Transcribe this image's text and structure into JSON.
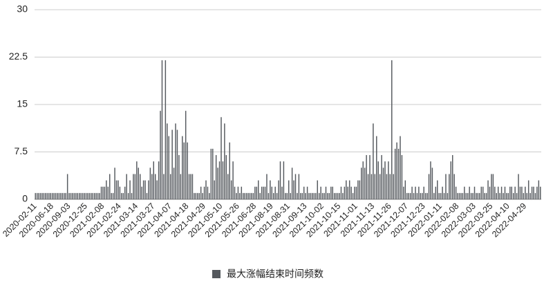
{
  "chart_data": {
    "type": "bar",
    "categories": [
      "2020-02-11",
      null,
      null,
      null,
      null,
      null,
      null,
      null,
      null,
      null,
      "2020-06-18",
      null,
      null,
      null,
      null,
      null,
      null,
      null,
      null,
      null,
      "2020-09-03",
      null,
      null,
      null,
      null,
      null,
      null,
      null,
      null,
      null,
      "2020-12-25",
      null,
      null,
      null,
      null,
      null,
      null,
      null,
      null,
      null,
      "2021-02-08",
      null,
      null,
      null,
      null,
      null,
      null,
      null,
      null,
      null,
      "2021-02-24",
      null,
      null,
      null,
      null,
      null,
      null,
      null,
      null,
      null,
      "2021-03-14",
      null,
      null,
      null,
      null,
      null,
      null,
      null,
      null,
      null,
      "2021-03-27",
      null,
      null,
      null,
      null,
      null,
      null,
      null,
      null,
      null,
      "2021-04-07",
      null,
      null,
      null,
      null,
      null,
      null,
      null,
      null,
      null,
      "2021-04-18",
      null,
      null,
      null,
      null,
      null,
      null,
      null,
      null,
      null,
      "2021-04-29",
      null,
      null,
      null,
      null,
      null,
      null,
      null,
      null,
      null,
      "2021-05-10",
      null,
      null,
      null,
      null,
      null,
      null,
      null,
      null,
      null,
      "2021-05-26",
      null,
      null,
      null,
      null,
      null,
      null,
      null,
      null,
      null,
      "2021-06-28",
      null,
      null,
      null,
      null,
      null,
      null,
      null,
      null,
      null,
      "2021-08-19",
      null,
      null,
      null,
      null,
      null,
      null,
      null,
      null,
      null,
      "2021-08-31",
      null,
      null,
      null,
      null,
      null,
      null,
      null,
      null,
      null,
      "2021-09-13",
      null,
      null,
      null,
      null,
      null,
      null,
      null,
      null,
      null,
      "2021-10-02",
      null,
      null,
      null,
      null,
      null,
      null,
      null,
      null,
      null,
      "2021-10-15",
      null,
      null,
      null,
      null,
      null,
      null,
      null,
      null,
      null,
      "2021-11-01",
      null,
      null,
      null,
      null,
      null,
      null,
      null,
      null,
      null,
      "2021-11-13",
      null,
      null,
      null,
      null,
      null,
      null,
      null,
      null,
      null,
      "2021-11-26",
      null,
      null,
      null,
      null,
      null,
      null,
      null,
      null,
      null,
      "2021-12-07",
      null,
      null,
      null,
      null,
      null,
      null,
      null,
      null,
      null,
      "2021-12-23",
      null,
      null,
      null,
      null,
      null,
      null,
      null,
      null,
      null,
      "2022-01-11",
      null,
      null,
      null,
      null,
      null,
      null,
      null,
      null,
      null,
      "2022-02-08",
      null,
      null,
      null,
      null,
      null,
      null,
      null,
      null,
      null,
      "2022-03-03",
      null,
      null,
      null,
      null,
      null,
      null,
      null,
      null,
      null,
      "2022-03-25",
      null,
      null,
      null,
      null,
      null,
      null,
      null,
      null,
      null,
      "2022-04-10",
      null,
      null,
      null,
      null,
      null,
      null,
      null,
      null,
      null,
      "2022-04-29",
      null,
      null,
      null,
      null,
      null,
      null,
      null,
      null,
      null
    ],
    "series": [
      {
        "name": "最大涨幅结束时间频数",
        "color": "#55595e",
        "values": [
          1,
          1,
          1,
          1,
          1,
          1,
          1,
          1,
          1,
          1,
          1,
          1,
          1,
          1,
          1,
          1,
          1,
          1,
          1,
          4,
          1,
          1,
          1,
          1,
          1,
          1,
          1,
          1,
          1,
          1,
          1,
          1,
          1,
          1,
          1,
          1,
          1,
          1,
          1,
          2,
          2,
          2,
          3,
          2,
          4,
          1,
          1,
          5,
          3,
          3,
          2,
          1,
          1,
          2,
          4,
          1,
          3,
          1,
          4,
          4,
          6,
          5,
          4,
          2,
          3,
          3,
          1,
          3,
          5,
          4,
          6,
          4,
          3,
          6,
          14,
          22,
          4,
          22,
          12,
          10,
          4,
          11,
          5,
          12,
          11,
          7,
          4,
          10,
          9,
          14,
          9,
          4,
          4,
          4,
          1,
          1,
          1,
          1,
          2,
          1,
          2,
          3,
          2,
          1,
          8,
          8,
          3,
          7,
          5,
          6,
          13,
          6,
          12,
          7,
          4,
          9,
          3,
          6,
          2,
          1,
          2,
          1,
          2,
          1,
          1,
          1,
          1,
          1,
          1,
          1,
          2,
          2,
          3,
          1,
          2,
          2,
          2,
          4,
          1,
          3,
          2,
          1,
          2,
          1,
          3,
          6,
          2,
          6,
          1,
          1,
          3,
          1,
          5,
          3,
          4,
          1,
          4,
          1,
          1,
          2,
          1,
          2,
          1,
          1,
          1,
          1,
          1,
          3,
          1,
          2,
          1,
          1,
          2,
          1,
          1,
          2,
          2,
          1,
          1,
          1,
          1,
          2,
          1,
          2,
          3,
          2,
          3,
          2,
          1,
          2,
          2,
          3,
          3,
          5,
          6,
          5,
          7,
          4,
          7,
          4,
          12,
          4,
          10,
          6,
          4,
          7,
          5,
          6,
          4,
          6,
          4,
          22,
          4,
          8,
          9,
          8,
          10,
          7,
          2,
          3,
          1,
          1,
          1,
          2,
          1,
          2,
          1,
          2,
          1,
          1,
          2,
          1,
          1,
          4,
          6,
          5,
          1,
          2,
          3,
          1,
          1,
          2,
          1,
          4,
          1,
          4,
          6,
          7,
          4,
          2,
          1,
          1,
          1,
          1,
          2,
          1,
          1,
          2,
          1,
          1,
          2,
          1,
          1,
          1,
          2,
          2,
          1,
          1,
          3,
          2,
          4,
          4,
          2,
          1,
          2,
          1,
          2,
          1,
          2,
          1,
          1,
          2,
          2,
          1,
          2,
          1,
          4,
          2,
          2,
          1,
          2,
          1,
          3,
          1,
          2,
          2,
          1,
          2,
          3,
          2
        ]
      }
    ],
    "ylim": [
      0,
      30
    ],
    "yticks": [
      0,
      7.5,
      15,
      22.5,
      30
    ],
    "grid": true
  }
}
